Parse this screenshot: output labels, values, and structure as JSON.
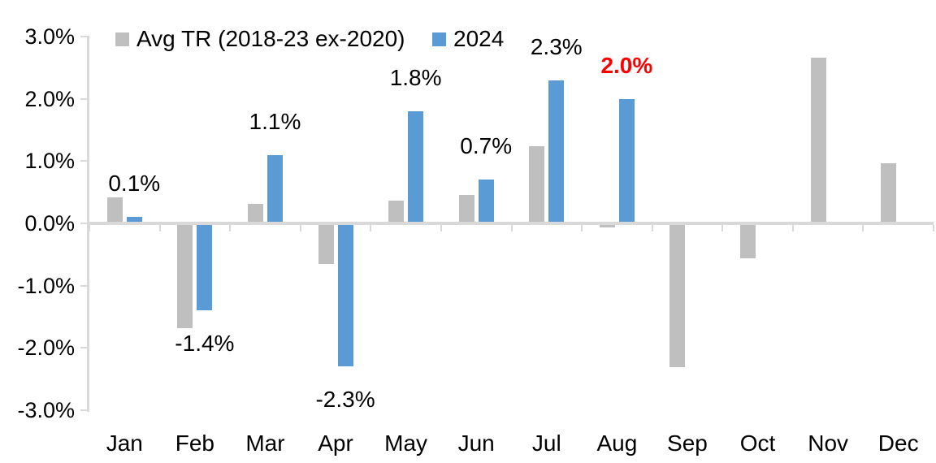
{
  "chart_data": {
    "type": "bar",
    "title": "",
    "categories": [
      "Jan",
      "Feb",
      "Mar",
      "Apr",
      "May",
      "Jun",
      "Jul",
      "Aug",
      "Sep",
      "Oct",
      "Nov",
      "Dec"
    ],
    "series": [
      {
        "name": "Avg TR (2018-23 ex-2020)",
        "color": "#BFBFBF",
        "values": [
          0.42,
          -1.68,
          0.31,
          -0.65,
          0.36,
          0.46,
          1.24,
          -0.06,
          -2.31,
          -0.56,
          2.66,
          0.96
        ]
      },
      {
        "name": "2024",
        "color": "#5B9BD5",
        "values": [
          0.1,
          -1.4,
          1.1,
          -2.3,
          1.8,
          0.7,
          2.3,
          2.0,
          null,
          null,
          null,
          null
        ],
        "data_labels": [
          {
            "text": "0.1%",
            "color": "#000000",
            "bold": false
          },
          {
            "text": "-1.4%",
            "color": "#000000",
            "bold": false
          },
          {
            "text": "1.1%",
            "color": "#000000",
            "bold": false
          },
          {
            "text": "-2.3%",
            "color": "#000000",
            "bold": false
          },
          {
            "text": "1.8%",
            "color": "#000000",
            "bold": false
          },
          {
            "text": "0.7%",
            "color": "#000000",
            "bold": false
          },
          {
            "text": "2.3%",
            "color": "#000000",
            "bold": false
          },
          {
            "text": "2.0%",
            "color": "#FF0000",
            "bold": true
          },
          null,
          null,
          null,
          null
        ]
      }
    ],
    "y_axis": {
      "min": -3,
      "max": 3,
      "step": 1,
      "tick_labels": [
        "3.0%",
        "2.0%",
        "1.0%",
        "0.0%",
        "-1.0%",
        "-2.0%",
        "-3.0%"
      ]
    },
    "legend": {
      "position": "top",
      "entries": [
        "Avg TR (2018-23 ex-2020)",
        "2024"
      ]
    },
    "grid": false,
    "axis_color": "#D9D9D9",
    "text_color": "#000000",
    "highlight_color": "#FF0000",
    "background": "#FFFFFF"
  }
}
